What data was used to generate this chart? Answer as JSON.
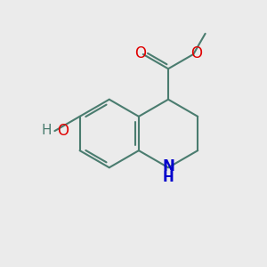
{
  "background_color": "#ebebeb",
  "bond_color": "#4a7c6f",
  "bond_width": 1.5,
  "atom_colors": {
    "O": "#e00000",
    "N": "#0000cc",
    "C": "#4a7c6f"
  },
  "font_size": 11,
  "bl": 1.3
}
